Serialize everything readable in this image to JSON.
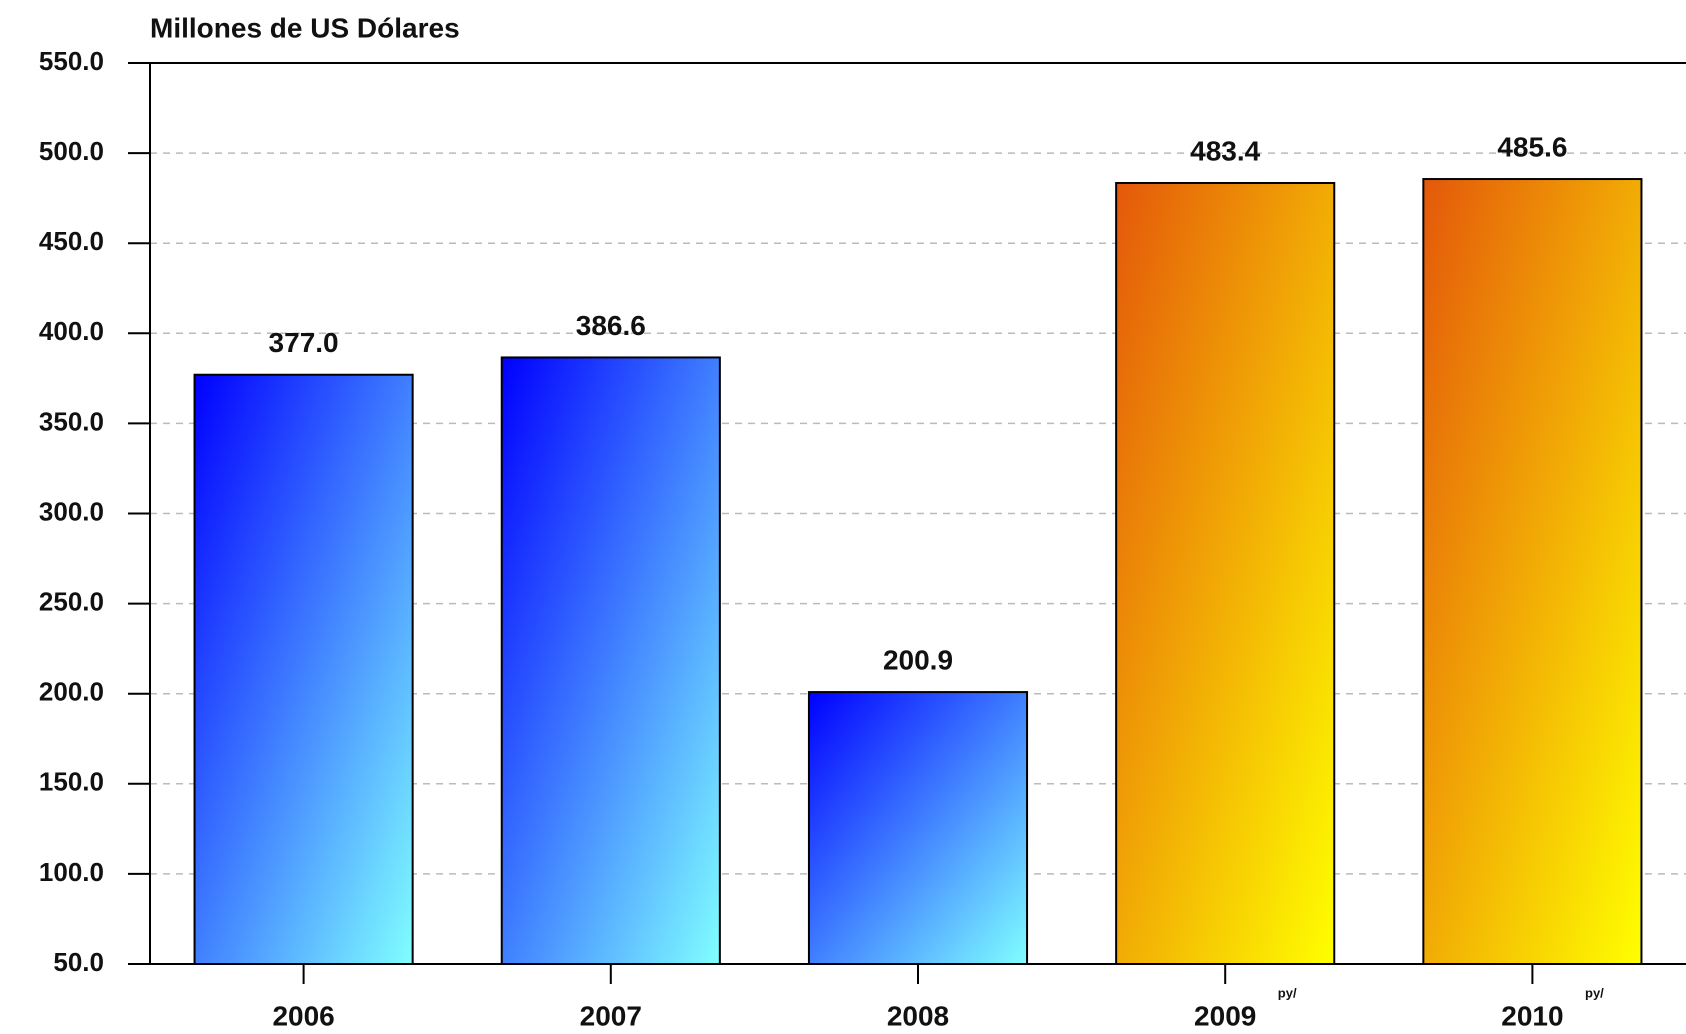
{
  "chart_data": {
    "type": "bar",
    "title": "Millones de US Dólares",
    "categories": [
      "2006",
      "2007",
      "2008",
      "2009",
      "2010"
    ],
    "category_superscripts": [
      null,
      null,
      null,
      "py/",
      "py/"
    ],
    "values": [
      377.0,
      386.6,
      200.9,
      483.4,
      485.6
    ],
    "value_labels": [
      "377.0",
      "386.6",
      "200.9",
      "483.4",
      "485.6"
    ],
    "gradients": [
      [
        "#0000ff",
        "#80ffff"
      ],
      [
        "#0000ff",
        "#80ffff"
      ],
      [
        "#0000ff",
        "#80ffff"
      ],
      [
        "#e4580a",
        "#ffff00"
      ],
      [
        "#e4580a",
        "#ffff00"
      ]
    ],
    "ylim": [
      50,
      550
    ],
    "yticks": [
      {
        "value": 50,
        "label": "50.0"
      },
      {
        "value": 100,
        "label": "100.0"
      },
      {
        "value": 150,
        "label": "150.0"
      },
      {
        "value": 200,
        "label": "200.0"
      },
      {
        "value": 250,
        "label": "250.0"
      },
      {
        "value": 300,
        "label": "300.0"
      },
      {
        "value": 350,
        "label": "350.0"
      },
      {
        "value": 400,
        "label": "400.0"
      },
      {
        "value": 450,
        "label": "450.0"
      },
      {
        "value": 500,
        "label": "500.0"
      },
      {
        "value": 550,
        "label": "550.0"
      }
    ],
    "grid": true
  }
}
